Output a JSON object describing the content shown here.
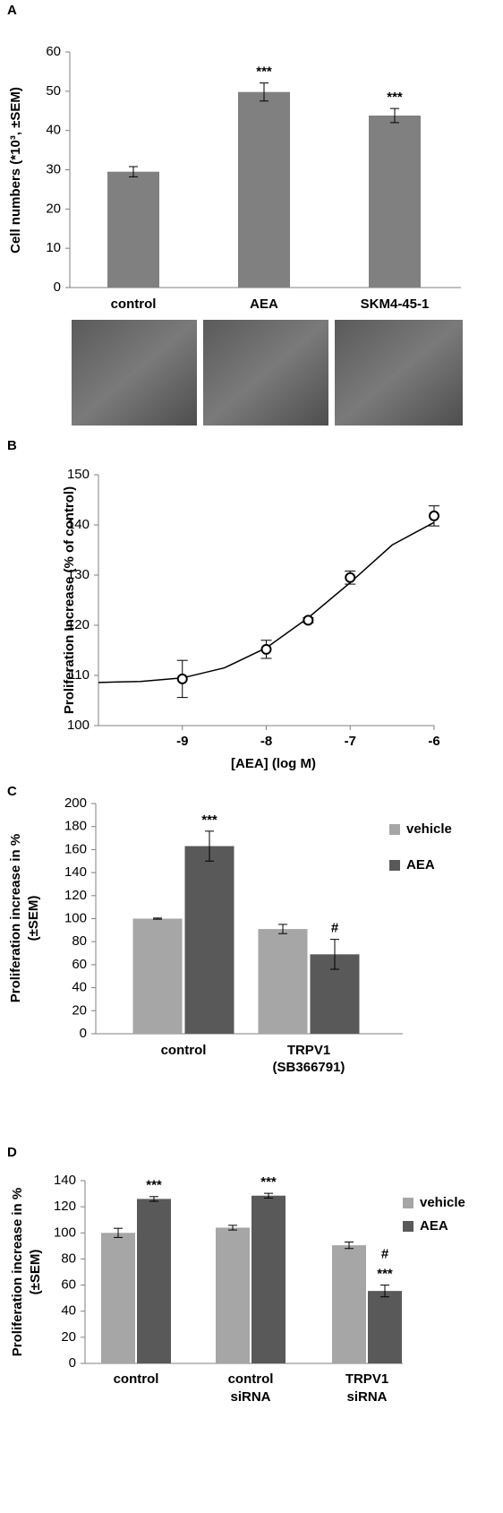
{
  "chart_data": [
    {
      "type": "bar",
      "panel_label": "A",
      "ylabel": "Cell numbers (*10³, ±SEM)",
      "categories": [
        "control",
        "AEA",
        "SKM4-45-1"
      ],
      "values": [
        29.5,
        49.8,
        43.8
      ],
      "errors": [
        1.3,
        2.3,
        1.8
      ],
      "annotations": [
        null,
        [
          "***"
        ],
        [
          "***"
        ]
      ],
      "color": "#808080",
      "ylim": [
        0,
        60
      ],
      "yticks": [
        0,
        10,
        20,
        30,
        40,
        50,
        60
      ]
    },
    {
      "type": "scatter",
      "panel_label": "B",
      "xlabel": "[AEA] (log M)",
      "ylabel": "Proliferation Increase (% of control)",
      "x": [
        -9,
        -8,
        -7.5,
        -7,
        -6
      ],
      "values": [
        109.3,
        115.2,
        121,
        129.5,
        141.8
      ],
      "errors": [
        3.7,
        1.8,
        0.5,
        1.3,
        2
      ],
      "fit": {
        "x": [
          -10,
          -9.5,
          -9,
          -8.5,
          -8,
          -7.5,
          -7,
          -6.5,
          -6
        ],
        "y": [
          108.6,
          108.8,
          109.5,
          111.5,
          115.5,
          121.5,
          128.5,
          136,
          140.5
        ]
      },
      "xlim": [
        -10,
        -6
      ],
      "xticks": [
        -9,
        -8,
        -7,
        -6
      ],
      "ylim": [
        100,
        150
      ],
      "yticks": [
        100,
        110,
        120,
        130,
        140,
        150
      ]
    },
    {
      "type": "grouped_bar",
      "panel_label": "C",
      "ylabel": [
        "Proliferation increase in %",
        "(±SEM)"
      ],
      "categories": [
        [
          "control"
        ],
        [
          "TRPV1"
        ]
      ],
      "category_notes": [
        null,
        "(SB366791)"
      ],
      "series": [
        {
          "name": "vehicle",
          "color": "#a6a6a6",
          "values": [
            100,
            91
          ],
          "errors": [
            0.5,
            4
          ],
          "annotations": [
            null,
            null
          ]
        },
        {
          "name": "AEA",
          "color": "#595959",
          "values": [
            163,
            69
          ],
          "errors": [
            13,
            13
          ],
          "annotations": [
            [
              "***"
            ],
            [
              "#"
            ]
          ]
        }
      ],
      "ylim": [
        0,
        200
      ],
      "yticks": [
        0,
        20,
        40,
        60,
        80,
        100,
        120,
        140,
        160,
        180,
        200
      ]
    },
    {
      "type": "grouped_bar",
      "panel_label": "D",
      "ylabel": [
        "Proliferation increase in %",
        "(±SEM)"
      ],
      "categories": [
        [
          "control"
        ],
        [
          "control",
          "siRNA"
        ],
        [
          "TRPV1",
          "siRNA"
        ]
      ],
      "series": [
        {
          "name": "vehicle",
          "color": "#a6a6a6",
          "values": [
            100,
            104,
            90.5
          ],
          "errors": [
            3.5,
            1.8,
            2.5
          ],
          "annotations": [
            null,
            null,
            null
          ]
        },
        {
          "name": "AEA",
          "color": "#595959",
          "values": [
            126,
            128.5,
            55.5
          ],
          "errors": [
            1.8,
            1.8,
            4.5
          ],
          "annotations": [
            [
              "***"
            ],
            [
              "***"
            ],
            [
              "#",
              "***"
            ]
          ]
        }
      ],
      "ylim": [
        0,
        140
      ],
      "yticks": [
        0,
        20,
        40,
        60,
        80,
        100,
        120,
        140
      ]
    }
  ]
}
